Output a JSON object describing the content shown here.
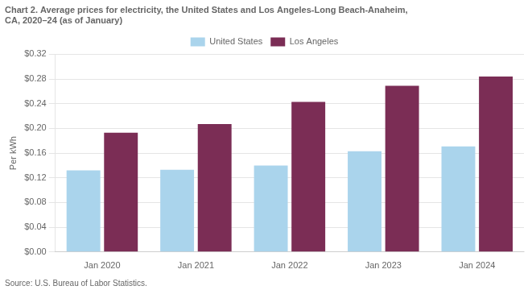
{
  "chart_data": {
    "type": "bar",
    "title": [
      "Chart 2. Average prices for electricity, the United States and Los Angeles-Long Beach-Anaheim,",
      "CA, 2020–24 (as of January)"
    ],
    "ylabel": "Per kWh",
    "annotations": [
      "Source: U.S. Bureau of Labor Statistics."
    ],
    "categories": [
      "Jan 2020",
      "Jan 2021",
      "Jan 2022",
      "Jan 2023",
      "Jan 2024"
    ],
    "series": [
      {
        "name": "United States",
        "color": "#aad4ec",
        "values": [
          0.132,
          0.133,
          0.14,
          0.163,
          0.171
        ]
      },
      {
        "name": "Los Angeles",
        "color": "#7b2d55",
        "values": [
          0.193,
          0.207,
          0.243,
          0.269,
          0.284
        ]
      }
    ],
    "ylim": [
      0,
      0.32
    ],
    "yticks": [
      {
        "value": 0.0,
        "label": "$0.00"
      },
      {
        "value": 0.04,
        "label": "$0.04"
      },
      {
        "value": 0.08,
        "label": "$0.08"
      },
      {
        "value": 0.12,
        "label": "$0.12"
      },
      {
        "value": 0.16,
        "label": "$0.16"
      },
      {
        "value": 0.2,
        "label": "$0.20"
      },
      {
        "value": 0.24,
        "label": "$0.24"
      },
      {
        "value": 0.28,
        "label": "$0.28"
      },
      {
        "value": 0.32,
        "label": "$0.32"
      }
    ],
    "grid": true,
    "legend": "top"
  }
}
